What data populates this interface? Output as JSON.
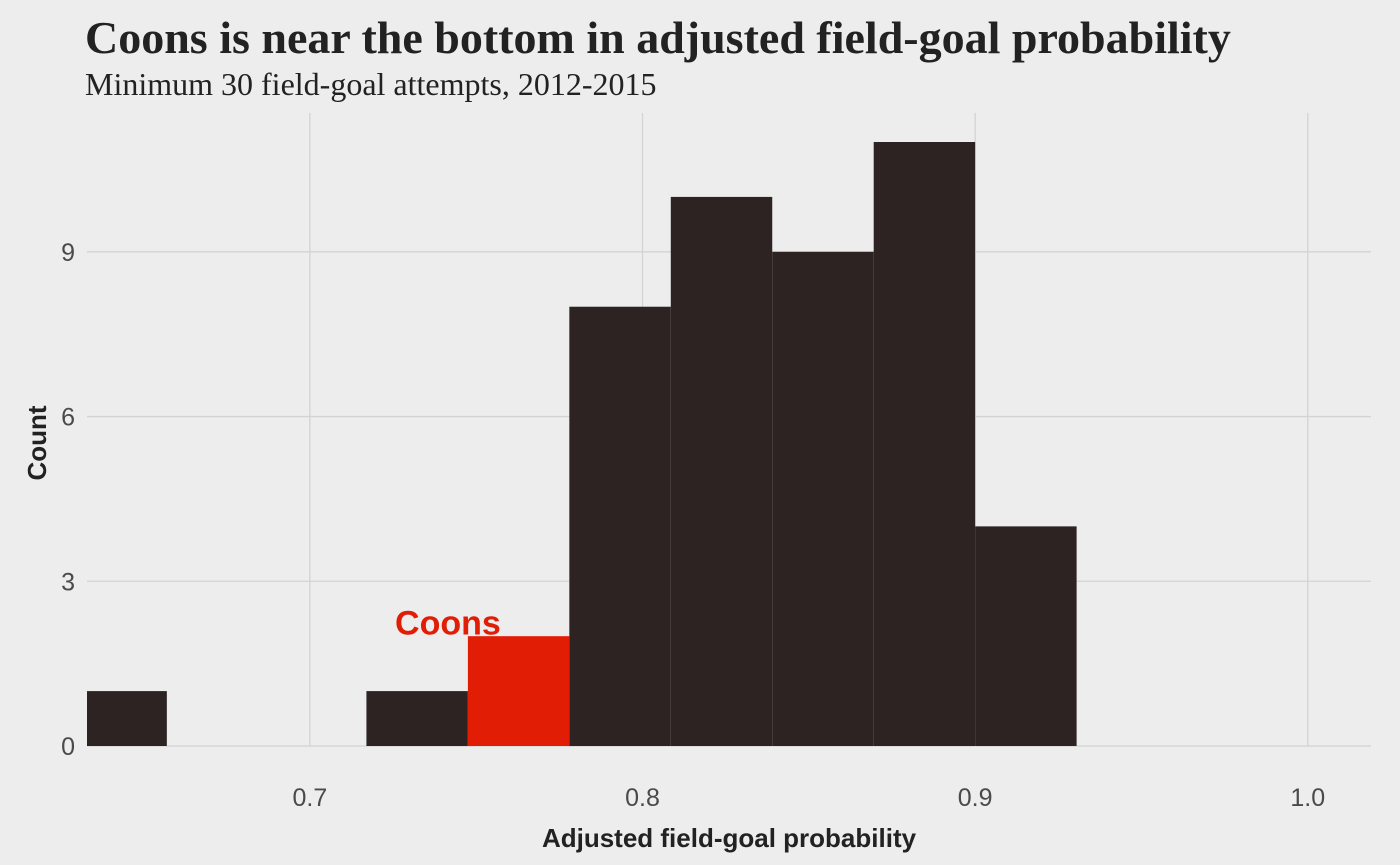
{
  "chart_data": {
    "type": "bar",
    "subtype": "histogram",
    "title": "Coons is near the bottom in adjusted field-goal probability",
    "subtitle": "Minimum 30 field-goal attempts, 2012-2015",
    "xlabel": "Adjusted field-goal probability",
    "ylabel": "Count",
    "xlim": [
      0.633,
      1.019
    ],
    "ylim": [
      0,
      11
    ],
    "x_ticks": [
      {
        "value": 0.7,
        "label": "0.7"
      },
      {
        "value": 0.8,
        "label": "0.8"
      },
      {
        "value": 0.9,
        "label": "0.9"
      },
      {
        "value": 1.0,
        "label": "1.0"
      }
    ],
    "y_ticks": [
      {
        "value": 0,
        "label": "0"
      },
      {
        "value": 3,
        "label": "3"
      },
      {
        "value": 6,
        "label": "6"
      },
      {
        "value": 9,
        "label": "9"
      }
    ],
    "bins": [
      {
        "x0": 0.6265,
        "x1": 0.657,
        "count": 1,
        "highlight": false
      },
      {
        "x0": 0.717,
        "x1": 0.7475,
        "count": 1,
        "highlight": false
      },
      {
        "x0": 0.7475,
        "x1": 0.778,
        "count": 2,
        "highlight": true
      },
      {
        "x0": 0.778,
        "x1": 0.8085,
        "count": 8,
        "highlight": false
      },
      {
        "x0": 0.8085,
        "x1": 0.839,
        "count": 10,
        "highlight": false
      },
      {
        "x0": 0.839,
        "x1": 0.8695,
        "count": 9,
        "highlight": false
      },
      {
        "x0": 0.8695,
        "x1": 0.9,
        "count": 11,
        "highlight": false
      },
      {
        "x0": 0.9,
        "x1": 0.9305,
        "count": 4,
        "highlight": false
      }
    ],
    "annotation": {
      "text": "Coons",
      "x": 0.7415,
      "y": 2.25
    },
    "colors": {
      "background": "#ededed",
      "bar": "#2d2322",
      "highlight": "#e21d05",
      "grid": "#d3d3d3"
    },
    "grid": true,
    "legend": "none"
  }
}
